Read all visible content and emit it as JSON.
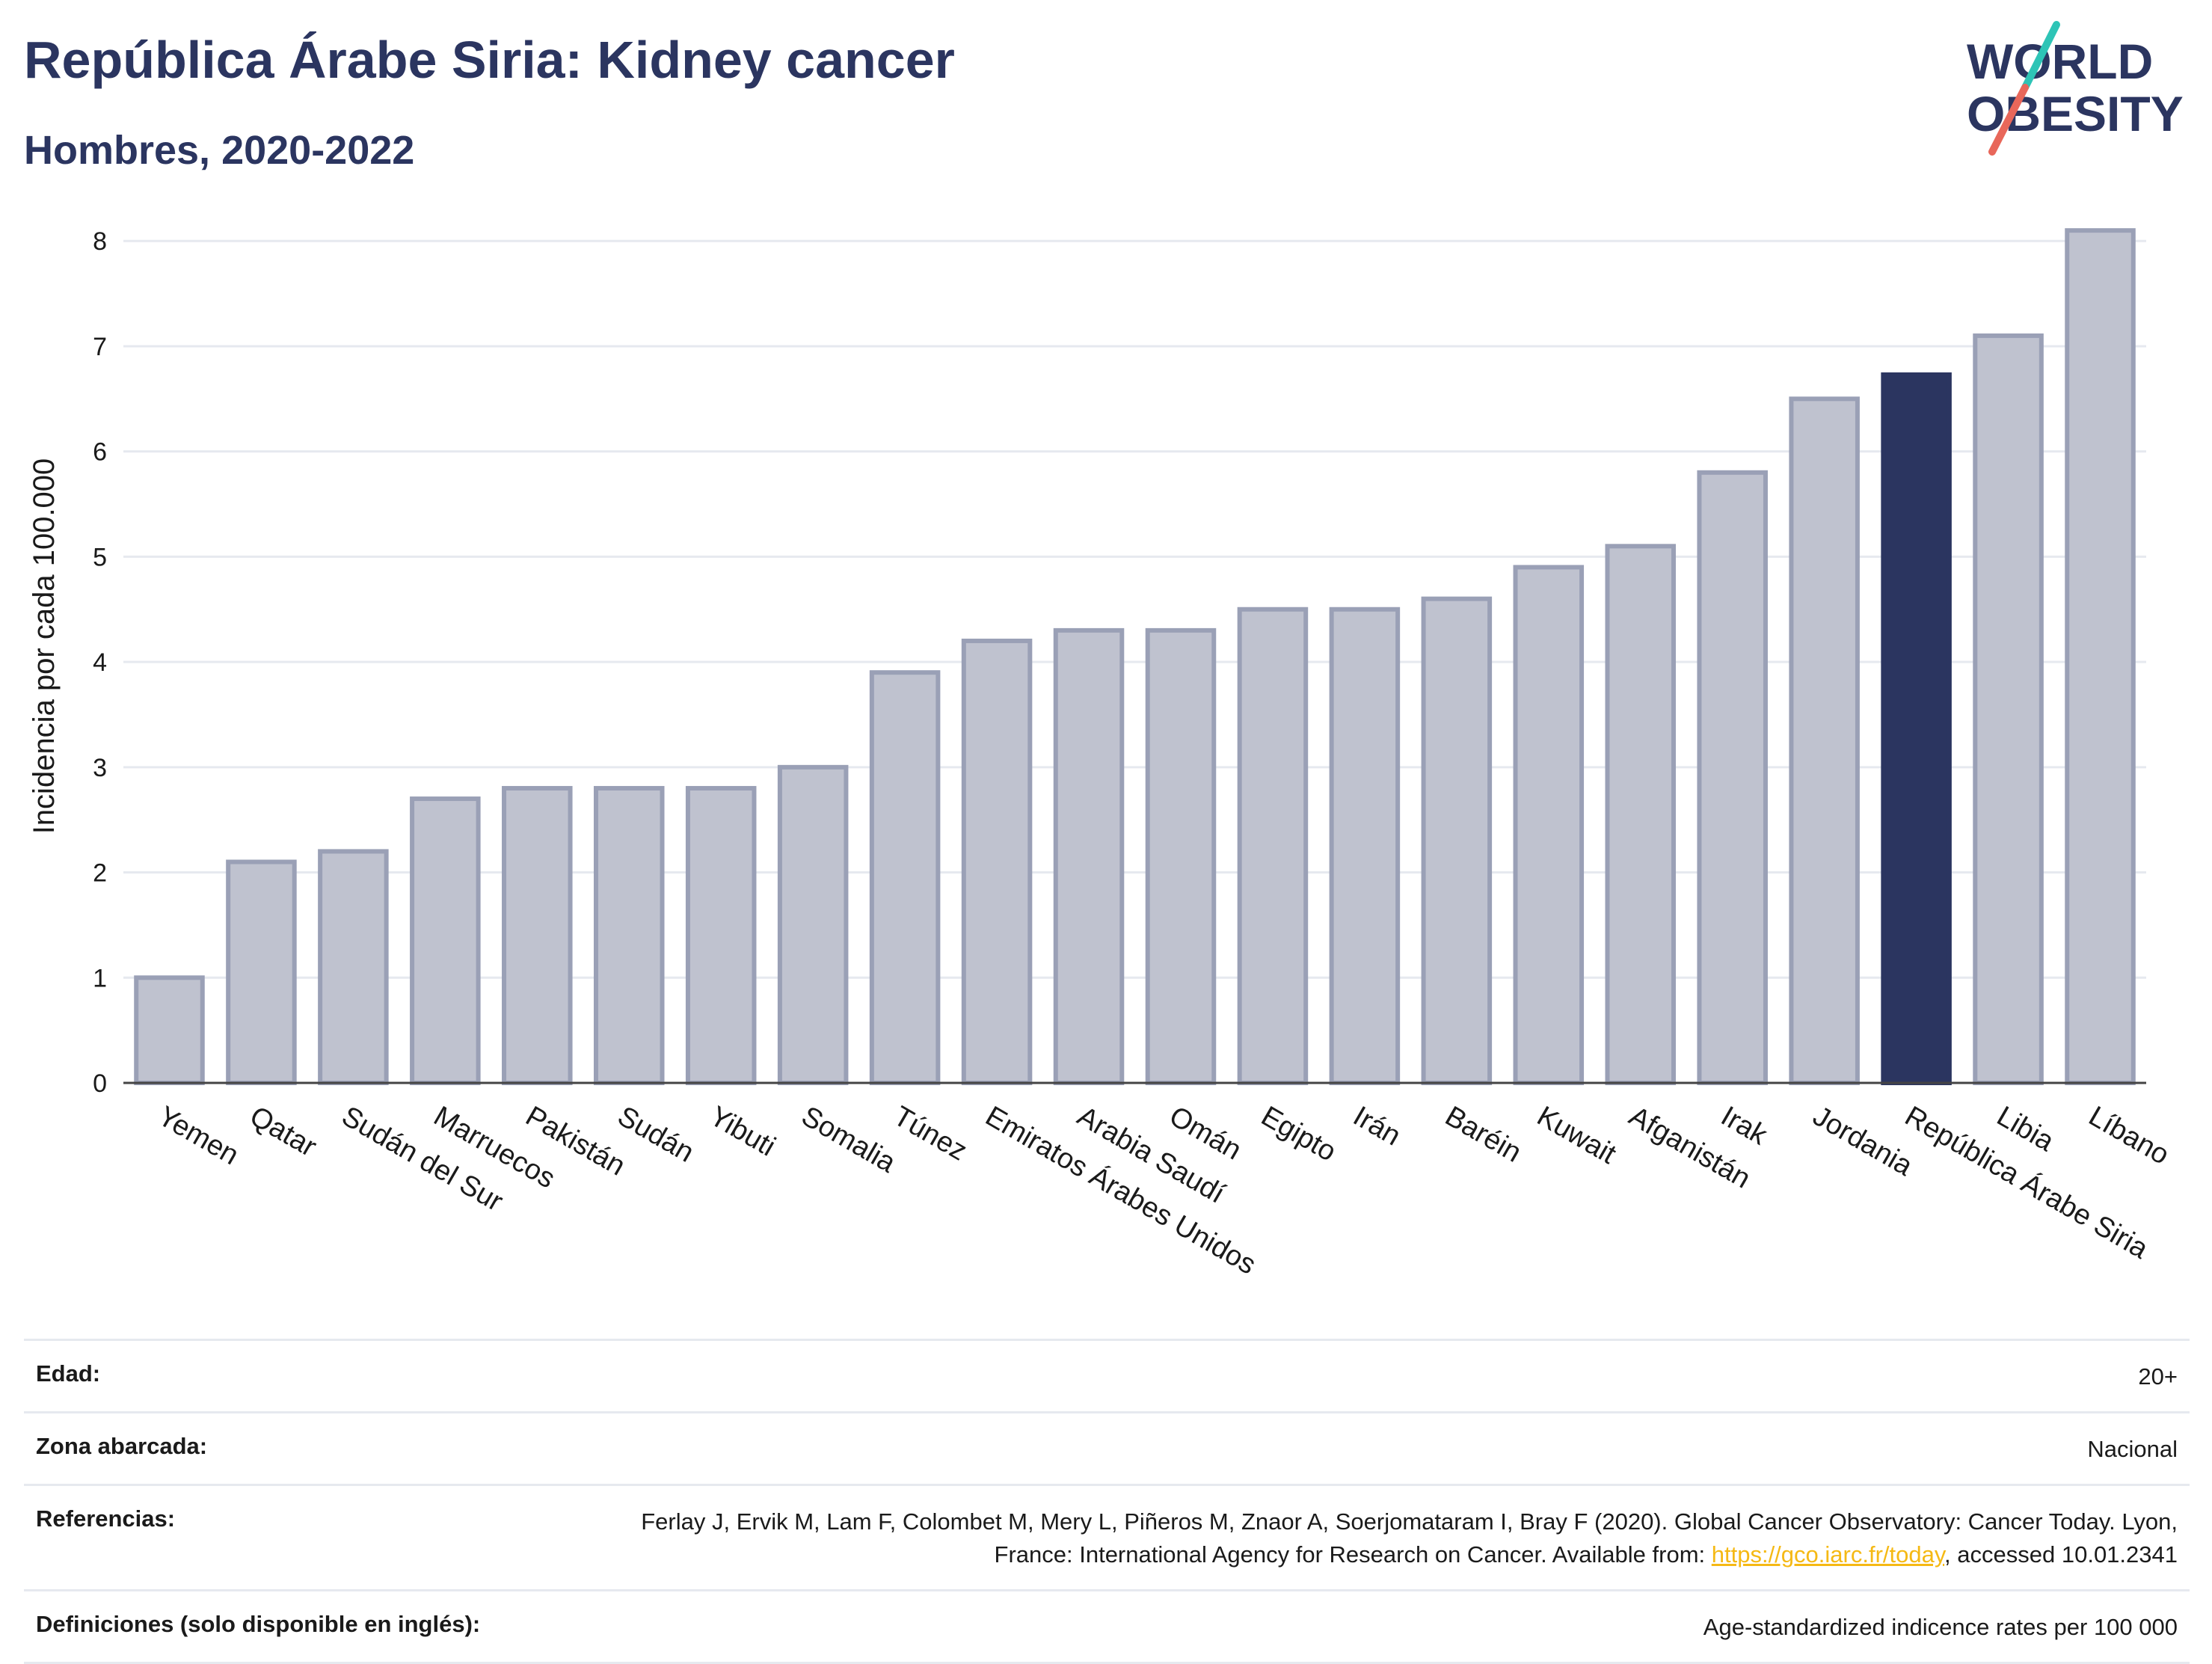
{
  "header": {
    "title": "República Árabe Siria: Kidney cancer",
    "subtitle": "Hombres, 2020-2022"
  },
  "logo": {
    "line1": "WORLD",
    "line2": "OBESITY",
    "accent_colors": [
      "#2ec4b6",
      "#e8675a"
    ],
    "text_color": "#2b3560"
  },
  "colors": {
    "bar_default": "#bfc2cf",
    "bar_border": "#9aa0b6",
    "bar_highlight": "#2b3560",
    "grid": "#e6e9ef"
  },
  "chart_data": {
    "type": "bar",
    "title": "República Árabe Siria: Kidney cancer",
    "subtitle": "Hombres, 2020-2022",
    "xlabel": "",
    "ylabel": "Incidencia por cada 100.000",
    "ylim": [
      0,
      8.3
    ],
    "yticks": [
      0,
      1,
      2,
      3,
      4,
      5,
      6,
      7,
      8
    ],
    "grid": true,
    "highlight": "República Árabe Siria",
    "categories": [
      "Yemen",
      "Qatar",
      "Sudán del Sur",
      "Marruecos",
      "Pakistán",
      "Sudán",
      "Yibuti",
      "Somalia",
      "Túnez",
      "Emiratos Árabes Unidos",
      "Arabia Saudí",
      "Omán",
      "Egipto",
      "Irán",
      "Baréin",
      "Kuwait",
      "Afganistán",
      "Irak",
      "Jordania",
      "República Árabe Siria",
      "Libia",
      "Líbano"
    ],
    "values": [
      1.0,
      2.1,
      2.2,
      2.7,
      2.8,
      2.8,
      2.8,
      3.0,
      3.9,
      4.2,
      4.3,
      4.3,
      4.5,
      4.5,
      4.6,
      4.9,
      5.1,
      5.8,
      6.5,
      6.73,
      7.1,
      8.1
    ]
  },
  "meta": {
    "rows": [
      {
        "label": "Edad:",
        "value": "20+"
      },
      {
        "label": "Zona abarcada:",
        "value": "Nacional"
      },
      {
        "label": "Referencias:",
        "value_pre": "Ferlay J, Ervik M, Lam F, Colombet M, Mery L, Piñeros M, Znaor A, Soerjomataram I, Bray F (2020). Global Cancer Observatory: Cancer Today. Lyon, France: International Agency for Research on Cancer. Available from: ",
        "link": "https://gco.iarc.fr/today",
        "value_post": ", accessed 10.01.2341"
      },
      {
        "label": "Definiciones (solo disponible en inglés):",
        "value": "Age-standardized indicence rates per 100 000"
      }
    ]
  }
}
